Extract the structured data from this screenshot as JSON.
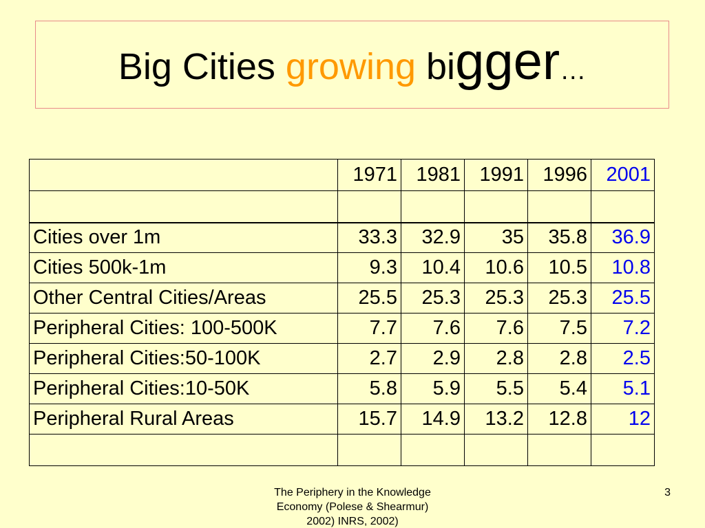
{
  "slide": {
    "title_part1": "Big Cities ",
    "title_accent": "growing",
    "title_part2": " bi",
    "title_big": "gger",
    "title_dots": "…",
    "footer_line1": "The Periphery in the Knowledge",
    "footer_line2": "Economy (Polese & Shearmur)",
    "footer_line3": "2002) INRS, 2002)",
    "page_number": "3"
  },
  "colors": {
    "background": "#ffffcc",
    "title_accent": "#ff9900",
    "highlight_column": "#0000ee",
    "title_border": "#e88a8a"
  },
  "table": {
    "header": [
      "",
      "1971",
      "1981",
      "1991",
      "1996",
      "2001"
    ],
    "rows": [
      [
        "Cities over 1m",
        "33.3",
        "32.9",
        "35",
        "35.8",
        "36.9"
      ],
      [
        "Cities 500k-1m",
        "9.3",
        "10.4",
        "10.6",
        "10.5",
        "10.8"
      ],
      [
        "Other Central Cities/Areas",
        "25.5",
        "25.3",
        "25.3",
        "25.3",
        "25.5"
      ],
      [
        "Peripheral Cities: 100-500K",
        "7.7",
        "7.6",
        "7.6",
        "7.5",
        "7.2"
      ],
      [
        "Peripheral Cities:50-100K",
        "2.7",
        "2.9",
        "2.8",
        "2.8",
        "2.5"
      ],
      [
        "Peripheral Cities:10-50K",
        "5.8",
        "5.9",
        "5.5",
        "5.4",
        "5.1"
      ],
      [
        "Peripheral Rural Areas",
        "15.7",
        "14.9",
        "13.2",
        "12.8",
        "12"
      ]
    ]
  }
}
